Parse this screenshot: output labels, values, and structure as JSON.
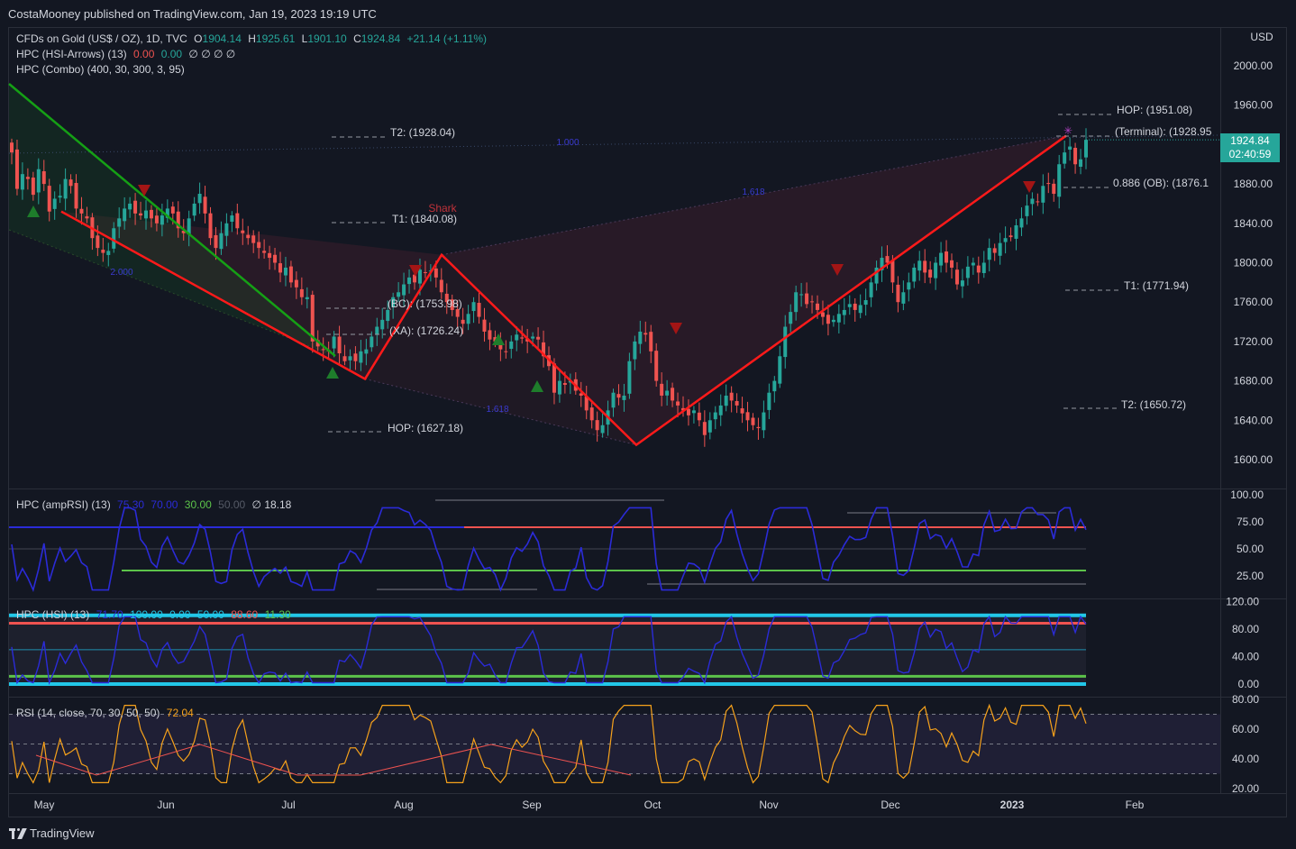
{
  "header": {
    "published": "CostaMooney published on TradingView.com, Jan 19, 2023 19:19 UTC"
  },
  "legend": {
    "symbol": "CFDs on Gold (US$ / OZ), 1D, TVC",
    "o_label": "O",
    "o": "1904.14",
    "h_label": "H",
    "h": "1925.61",
    "l_label": "L",
    "l": "1901.10",
    "c_label": "C",
    "c": "1924.84",
    "change": "+21.14 (+1.11%)",
    "arrows": "HPC (HSI-Arrows) (13)",
    "arrows_v1": "0.00",
    "arrows_v2": "0.00",
    "arrows_extra": "∅ ∅ ∅ ∅",
    "combo": "HPC (Combo) (400, 30, 300, 3, 95)"
  },
  "colors": {
    "bg": "#131722",
    "up": "#26a69a",
    "down": "#ef5350",
    "pattern_red": "#ff1a1a",
    "pattern_green": "#15a015",
    "rsi": "#f7a21b",
    "osc": "#2b2bd8",
    "cyan": "#22c7e8"
  },
  "price_axis": {
    "currency": "USD",
    "ticks": [
      "2000.00",
      "1960.00",
      "1920.00",
      "1880.00",
      "1840.00",
      "1800.00",
      "1760.00",
      "1720.00",
      "1680.00",
      "1640.00",
      "1600.00"
    ],
    "last_price": "1924.84",
    "countdown": "02:40:59"
  },
  "time_axis": {
    "labels": [
      "May",
      "Jun",
      "Jul",
      "Aug",
      "Sep",
      "Oct",
      "Nov",
      "Dec",
      "2023",
      "Feb"
    ]
  },
  "annotations": {
    "left": [
      "T2: (1928.04)",
      "T1: (1840.08)",
      "(BC): (1753.98)",
      "(XA): (1726.24)",
      "HOP: (1627.18)"
    ],
    "right": [
      "HOP: (1951.08)",
      "(Terminal): (1928.95",
      "0.886 (OB): (1876.1",
      "T1: (1771.94)",
      "T2: (1650.72)"
    ],
    "pattern_name": "Shark",
    "fib_labels": [
      "2.000",
      "1.618",
      "1.618",
      "1.000"
    ]
  },
  "panes": {
    "amprsi": {
      "title": "HPC (ampRSI) (13)",
      "values": [
        "75.30",
        "70.00",
        "30.00",
        "50.00"
      ],
      "extra": "∅ 18.18",
      "ticks": [
        "100.00",
        "75.00",
        "50.00",
        "25.00"
      ]
    },
    "hsi": {
      "title": "HPC (HSI) (13)",
      "values": [
        "71.70",
        "100.00",
        "0.00",
        "50.00",
        "88.60",
        "11.30"
      ],
      "ticks": [
        "120.00",
        "80.00",
        "40.00",
        "0.00"
      ]
    },
    "rsi": {
      "title": "RSI (14, close, 70, 30, 50, 50)",
      "value": "72.04",
      "ticks": [
        "80.00",
        "60.00",
        "40.00",
        "20.00"
      ]
    }
  },
  "footer": {
    "brand": "TradingView"
  },
  "chart_data": {
    "type": "candlestick",
    "ylim": [
      1580,
      2020
    ],
    "ohlc_sample_close": [
      1912,
      1875,
      1890,
      1885,
      1869,
      1895,
      1880,
      1852,
      1865,
      1868,
      1885,
      1878,
      1855,
      1850,
      1845,
      1825,
      1815,
      1810,
      1812,
      1835,
      1845,
      1855,
      1860,
      1850,
      1848,
      1853,
      1845,
      1840,
      1848,
      1855,
      1850,
      1835,
      1830,
      1845,
      1860,
      1870,
      1850,
      1825,
      1815,
      1830,
      1840,
      1848,
      1835,
      1830,
      1825,
      1820,
      1815,
      1810,
      1805,
      1800,
      1790,
      1795,
      1780,
      1775,
      1765,
      1765,
      1720,
      1715,
      1712,
      1710,
      1725,
      1708,
      1700,
      1705,
      1700,
      1710,
      1712,
      1725,
      1735,
      1742,
      1752,
      1765,
      1770,
      1778,
      1785,
      1780,
      1793,
      1790,
      1792,
      1785,
      1770,
      1760,
      1752,
      1745,
      1738,
      1748,
      1760,
      1745,
      1730,
      1722,
      1720,
      1712,
      1710,
      1720,
      1727,
      1723,
      1720,
      1725,
      1722,
      1705,
      1695,
      1668,
      1680,
      1676,
      1680,
      1670,
      1665,
      1650,
      1640,
      1630,
      1635,
      1650,
      1668,
      1663,
      1665,
      1700,
      1720,
      1730,
      1727,
      1710,
      1680,
      1665,
      1670,
      1660,
      1655,
      1650,
      1645,
      1650,
      1640,
      1625,
      1640,
      1648,
      1655,
      1665,
      1660,
      1655,
      1647,
      1640,
      1635,
      1632,
      1648,
      1668,
      1680,
      1705,
      1735,
      1750,
      1770,
      1768,
      1758,
      1760,
      1752,
      1745,
      1738,
      1742,
      1748,
      1752,
      1758,
      1752,
      1757,
      1762,
      1780,
      1795,
      1805,
      1800,
      1780,
      1760,
      1770,
      1780,
      1795,
      1802,
      1790,
      1785,
      1800,
      1810,
      1800,
      1795,
      1778,
      1782,
      1796,
      1800,
      1790,
      1800,
      1815,
      1810,
      1820,
      1825,
      1826,
      1838,
      1845,
      1858,
      1865,
      1862,
      1878,
      1880,
      1870,
      1900,
      1912,
      1918,
      1900,
      1905,
      1924.84
    ],
    "shark_pattern": {
      "X": 1852,
      "A": 1682,
      "B": 1808,
      "C": 1615,
      "D": 1929
    },
    "rsi_last": 72.04,
    "amprsi_last": 75.3,
    "hsi_last": 71.7
  }
}
